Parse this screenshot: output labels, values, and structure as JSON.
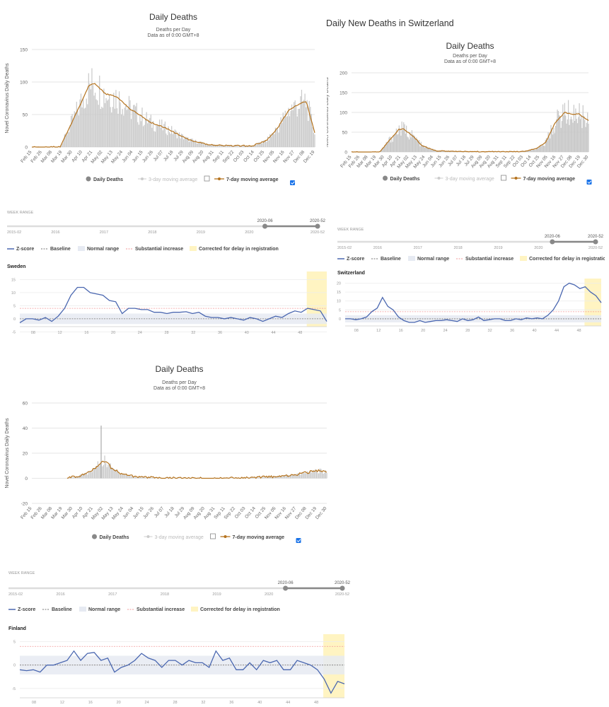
{
  "swiss_header": "Daily New Deaths in Switzerland",
  "colors": {
    "bar": "#c8c8c8",
    "ma7": "#b5731e",
    "zline": "#4a67b0",
    "baseline": "#777",
    "normal": "#e6eaf2",
    "substantial": "#f29b9b",
    "delay": "#fff4c2",
    "checkbox": "#1a73e8"
  },
  "charts": [
    {
      "type": "bar+line",
      "title": "Daily Deaths",
      "subtitle1": "Deaths per Day",
      "subtitle2": "Data as of 0:00 GMT+8",
      "ylabel": "Novel Coronavirus Daily Deaths",
      "ylim": [
        0,
        150
      ],
      "yticks": [
        0,
        50,
        100,
        150
      ],
      "x_labels": [
        "Feb 15",
        "Feb 26",
        "Mar 08",
        "Mar 19",
        "Mar 30",
        "Apr 10",
        "Apr 21",
        "May 02",
        "May 13",
        "May 24",
        "Jun 04",
        "Jun 15",
        "Jun 26",
        "Jul 07",
        "Jul 18",
        "Jul 29",
        "Aug 09",
        "Aug 20",
        "Aug 31",
        "Sep 11",
        "Sep 22",
        "Oct 03",
        "Oct 14",
        "Oct 25",
        "Nov 05",
        "Nov 16",
        "Nov 27",
        "Dec 08",
        "Dec 19"
      ],
      "legend": {
        "daily": "Daily Deaths",
        "ma3": "3-day moving average",
        "ma7": "7-day moving average"
      },
      "ma7": [
        [
          0,
          0
        ],
        [
          0.1,
          0
        ],
        [
          0.16,
          55
        ],
        [
          0.2,
          93
        ],
        [
          0.22,
          98
        ],
        [
          0.26,
          82
        ],
        [
          0.3,
          77
        ],
        [
          0.35,
          58
        ],
        [
          0.42,
          38
        ],
        [
          0.48,
          28
        ],
        [
          0.55,
          12
        ],
        [
          0.62,
          4
        ],
        [
          0.7,
          2
        ],
        [
          0.78,
          2
        ],
        [
          0.83,
          10
        ],
        [
          0.87,
          30
        ],
        [
          0.91,
          58
        ],
        [
          0.94,
          65
        ],
        [
          0.97,
          70
        ],
        [
          1,
          22
        ]
      ]
    },
    {
      "type": "bar+line",
      "title": "Daily Deaths",
      "subtitle1": "Deaths per Day",
      "subtitle2": "Data as of 0:00 GMT+8",
      "ylabel": "Novel Coronavirus Daily Deaths",
      "ylim": [
        0,
        200
      ],
      "yticks": [
        0,
        50,
        100,
        150,
        200
      ],
      "x_labels": [
        "Feb 15",
        "Feb 26",
        "Mar 08",
        "Mar 19",
        "Mar 30",
        "Apr 10",
        "Apr 21",
        "May 02",
        "May 13",
        "May 24",
        "Jun 04",
        "Jun 15",
        "Jun 26",
        "Jul 07",
        "Jul 18",
        "Jul 29",
        "Aug 09",
        "Aug 20",
        "Aug 31",
        "Sep 11",
        "Sep 22",
        "Oct 03",
        "Oct 14",
        "Oct 25",
        "Nov 05",
        "Nov 16",
        "Nov 27",
        "Dec 08",
        "Dec 19",
        "Dec 30"
      ],
      "legend": {
        "daily": "Daily Deaths",
        "ma3": "3-day moving average",
        "ma7": "7-day moving average"
      },
      "ma7": [
        [
          0,
          0
        ],
        [
          0.12,
          0
        ],
        [
          0.16,
          30
        ],
        [
          0.2,
          57
        ],
        [
          0.22,
          58
        ],
        [
          0.26,
          40
        ],
        [
          0.3,
          15
        ],
        [
          0.36,
          3
        ],
        [
          0.45,
          1
        ],
        [
          0.6,
          1
        ],
        [
          0.72,
          1
        ],
        [
          0.78,
          8
        ],
        [
          0.82,
          25
        ],
        [
          0.86,
          75
        ],
        [
          0.9,
          100
        ],
        [
          0.93,
          95
        ],
        [
          0.96,
          96
        ],
        [
          1,
          80
        ]
      ]
    },
    {
      "type": "bar+line",
      "title": "Daily Deaths",
      "subtitle1": "Deaths per Day",
      "subtitle2": "Data as of 0:00 GMT+8",
      "ylabel": "Novel Coronavirus Daily Deaths",
      "ylim": [
        -20,
        60
      ],
      "yticks": [
        -20,
        0,
        20,
        40,
        60
      ],
      "x_labels": [
        "Feb 15",
        "Feb 26",
        "Mar 08",
        "Mar 19",
        "Mar 30",
        "Apr 10",
        "Apr 21",
        "May 02",
        "May 13",
        "May 24",
        "Jun 04",
        "Jun 15",
        "Jun 26",
        "Jul 07",
        "Jul 18",
        "Jul 29",
        "Aug 09",
        "Aug 20",
        "Aug 31",
        "Sep 11",
        "Sep 22",
        "Oct 03",
        "Oct 14",
        "Oct 25",
        "Nov 05",
        "Nov 16",
        "Nov 27",
        "Dec 08",
        "Dec 19",
        "Dec 30"
      ],
      "legend": {
        "daily": "Daily Deaths",
        "ma3": "3-day moving average",
        "ma7": "7-day moving average"
      },
      "ma7": [
        [
          0.12,
          0
        ],
        [
          0.16,
          2
        ],
        [
          0.2,
          5
        ],
        [
          0.23,
          12
        ],
        [
          0.25,
          14
        ],
        [
          0.27,
          8
        ],
        [
          0.3,
          4
        ],
        [
          0.35,
          1
        ],
        [
          0.45,
          0
        ],
        [
          0.7,
          0
        ],
        [
          0.8,
          1
        ],
        [
          0.86,
          2
        ],
        [
          0.9,
          3
        ],
        [
          0.94,
          5
        ],
        [
          0.97,
          6
        ],
        [
          1,
          5
        ]
      ]
    }
  ],
  "zscore": [
    {
      "week_range_label": "WEEK RANGE",
      "range_start": "2020-06",
      "range_end": "2020-52",
      "range_years": [
        "2015-02",
        "2016",
        "2017",
        "2018",
        "2019",
        "2020",
        "2020-52"
      ],
      "legend": {
        "z": "Z-score",
        "baseline": "Baseline",
        "normal": "Normal range",
        "substantial": "Substantial increase",
        "delay": "Corrected for delay in registration"
      },
      "country": "Sweden",
      "yticks": [
        -5,
        0,
        5,
        10,
        15
      ],
      "ylim": [
        -3,
        17
      ],
      "xticks": [
        "08",
        "12",
        "16",
        "20",
        "24",
        "28",
        "32",
        "36",
        "40",
        "44",
        "48"
      ],
      "weeks": [
        6,
        52
      ],
      "delay_from": 49,
      "z": [
        -1.5,
        0,
        0,
        -0.5,
        0.5,
        -1,
        1,
        4,
        9,
        12,
        12,
        10,
        9.5,
        9,
        7,
        6.5,
        2,
        4,
        4,
        3.5,
        3.5,
        2.5,
        2.5,
        2,
        2.5,
        2.5,
        2.7,
        2,
        2.5,
        1,
        0.5,
        0.5,
        0,
        0.5,
        0,
        -0.5,
        0.5,
        0,
        -1,
        0,
        1,
        0.5,
        2,
        3,
        2.5,
        4,
        3.5,
        3,
        -1
      ]
    },
    {
      "week_range_label": "WEEK RANGE",
      "range_start": "2020-06",
      "range_end": "2020-52",
      "range_years": [
        "2015-02",
        "2016",
        "2017",
        "2018",
        "2019",
        "2020",
        "2020-52"
      ],
      "legend": {
        "z": "Z-score",
        "baseline": "Baseline",
        "normal": "Normal range",
        "substantial": "Substantial increase",
        "delay": "Corrected for delay in registration"
      },
      "country": "Switzerland",
      "yticks": [
        0,
        5,
        10,
        15,
        20
      ],
      "ylim": [
        -4,
        21
      ],
      "xticks": [
        "08",
        "12",
        "16",
        "20",
        "24",
        "28",
        "32",
        "36",
        "40",
        "44",
        "48"
      ],
      "weeks": [
        6,
        52
      ],
      "delay_from": 49,
      "z": [
        0,
        0,
        -0.5,
        0,
        1,
        4,
        6,
        12,
        7,
        5,
        1,
        -1,
        -2,
        -2,
        -1,
        -2,
        -1.5,
        -1,
        -1,
        -0.5,
        -1,
        -1.5,
        0,
        -1,
        -0.5,
        1,
        -1,
        -0.5,
        0,
        0,
        -1,
        -1,
        0,
        -0.5,
        0.5,
        0,
        0.5,
        0,
        2,
        5,
        10,
        18,
        20,
        19,
        17,
        18,
        15,
        13,
        9
      ]
    },
    {
      "week_range_label": "WEEK RANGE",
      "range_start": "2020-06",
      "range_end": "2020-52",
      "range_years": [
        "2015-02",
        "2016",
        "2017",
        "2018",
        "2019",
        "2020",
        "2020-52"
      ],
      "legend": {
        "z": "Z-score",
        "baseline": "Baseline",
        "normal": "Normal range",
        "substantial": "Substantial increase",
        "delay": "Corrected for delay in registration"
      },
      "country": "Finland",
      "yticks": [
        -5,
        0,
        5
      ],
      "ylim": [
        -7,
        6
      ],
      "xticks": [
        "08",
        "12",
        "16",
        "20",
        "24",
        "28",
        "32",
        "36",
        "40",
        "44",
        "48"
      ],
      "weeks": [
        6,
        52
      ],
      "delay_from": 49,
      "z": [
        -1,
        -1.2,
        -1,
        -1.5,
        0,
        0,
        0.5,
        1,
        3,
        1,
        2.5,
        2.7,
        1,
        1.5,
        -1.5,
        -0.5,
        0,
        1,
        2.5,
        1.5,
        1,
        -0.5,
        1,
        1,
        0,
        1,
        0.5,
        0.5,
        -0.5,
        3,
        1,
        1.5,
        -1,
        -1,
        0.5,
        -1,
        1,
        0.5,
        1,
        -1,
        -1,
        1,
        0.5,
        0,
        -1,
        -3,
        -6,
        -3.5,
        -4
      ]
    }
  ]
}
